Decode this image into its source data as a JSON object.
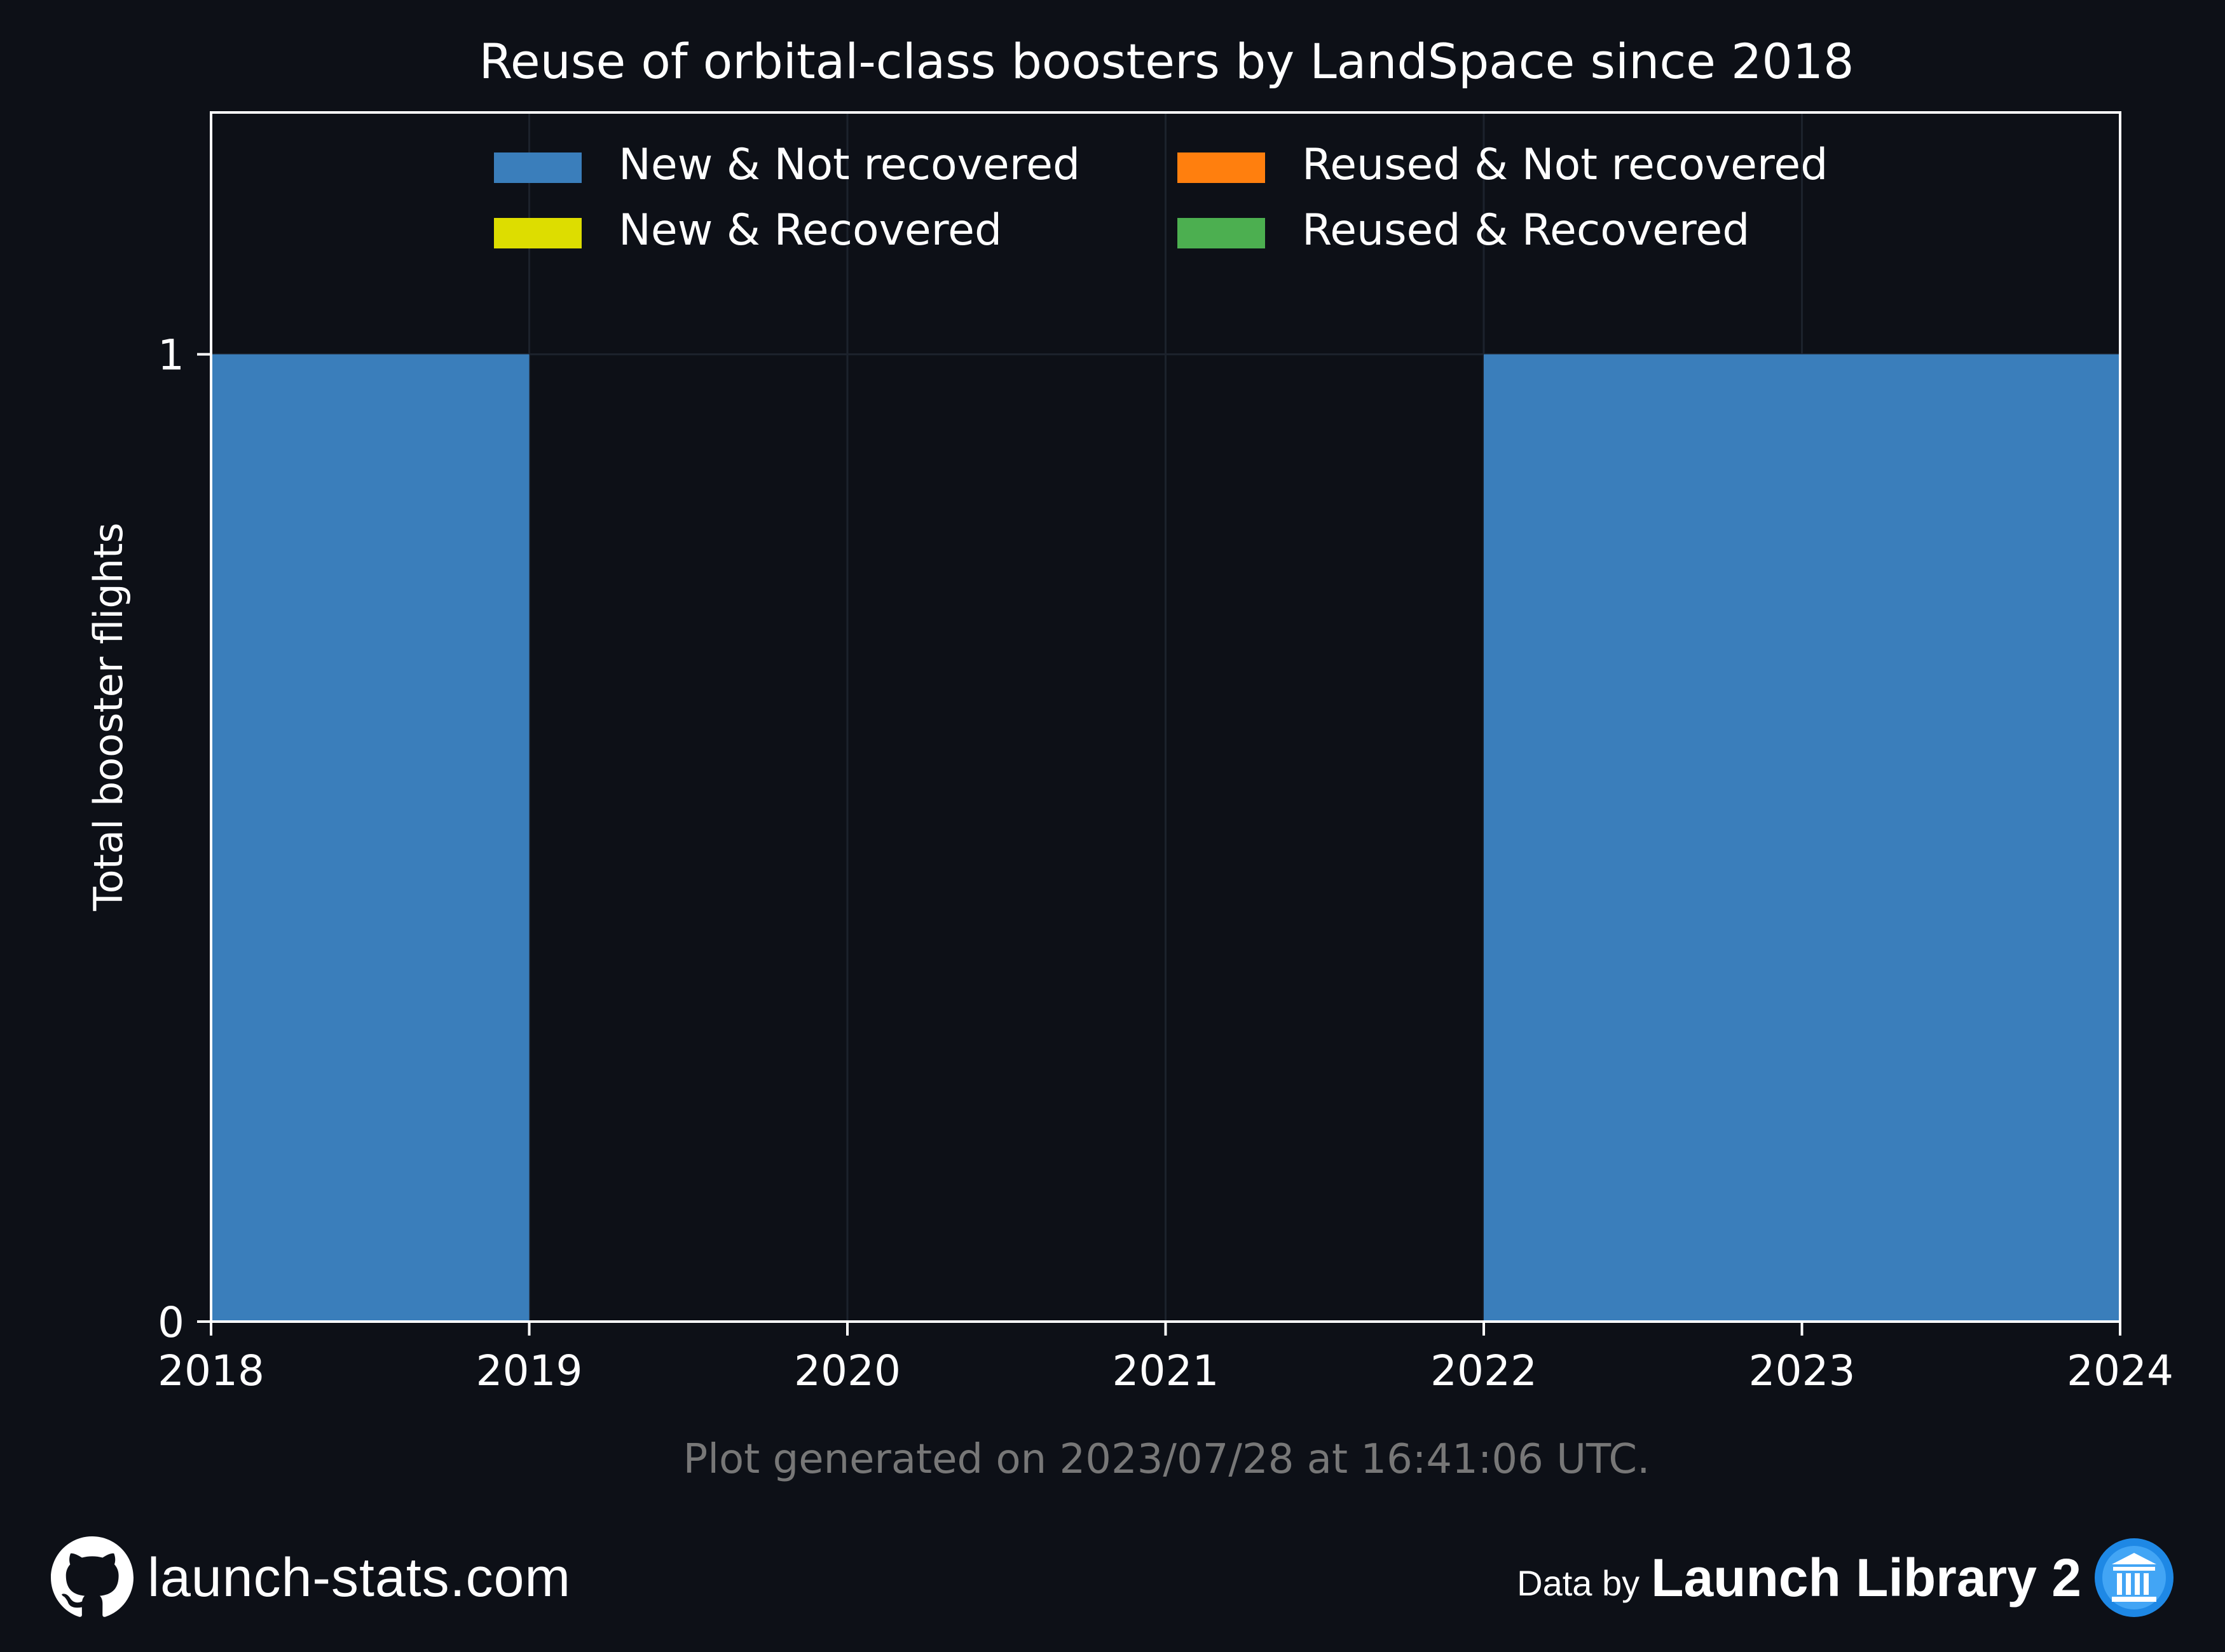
{
  "chart_data": {
    "type": "bar",
    "title": "Reuse of orbital-class boosters by LandSpace since 2018",
    "xlabel": "",
    "ylabel": "Total booster flights",
    "x_ticks": [
      "2018",
      "2019",
      "2020",
      "2021",
      "2022",
      "2023",
      "2024"
    ],
    "xlim": [
      2018,
      2024
    ],
    "y_ticks": [
      "0",
      "1"
    ],
    "ylim": [
      0,
      1.25
    ],
    "grid": true,
    "legend_position": "top-center",
    "categories": [
      "2018",
      "2019",
      "2020",
      "2021",
      "2022",
      "2023"
    ],
    "series": [
      {
        "name": "New & Not recovered",
        "color": "#3a7ebb",
        "values": [
          1,
          0,
          0,
          0,
          1,
          1
        ]
      },
      {
        "name": "New & Recovered",
        "color": "#dddd00",
        "values": [
          0,
          0,
          0,
          0,
          0,
          0
        ]
      },
      {
        "name": "Reused & Not recovered",
        "color": "#ff7f0e",
        "values": [
          0,
          0,
          0,
          0,
          0,
          0
        ]
      },
      {
        "name": "Reused & Recovered",
        "color": "#4caf50",
        "values": [
          0,
          0,
          0,
          0,
          0,
          0
        ]
      }
    ],
    "annotation": "Plot generated on 2023/07/28 at 16:41:06 UTC."
  },
  "footer": {
    "site": "launch-stats.com",
    "site_icon": "github-icon",
    "data_by": "Data by",
    "source": "Launch Library 2",
    "source_icon": "launch-library-logo-icon"
  }
}
